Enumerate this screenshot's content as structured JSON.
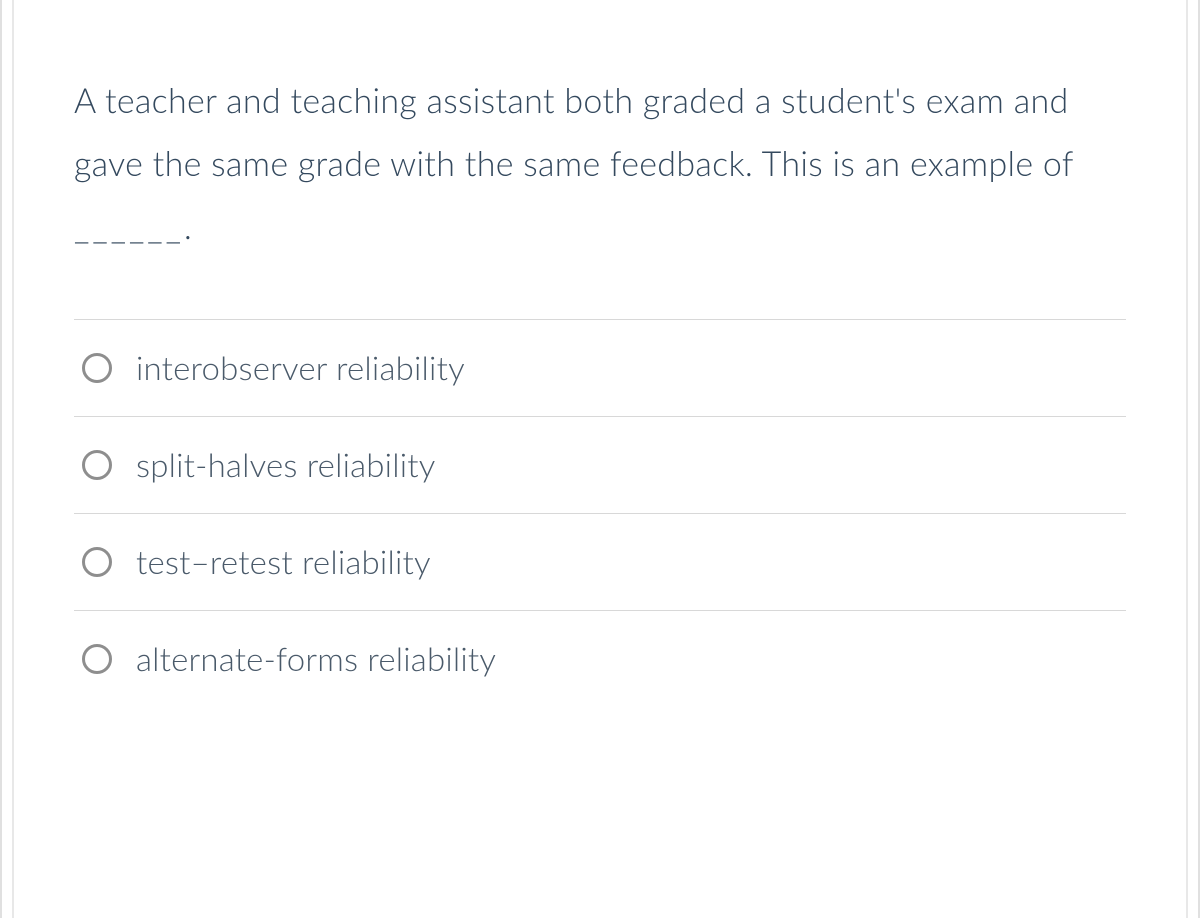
{
  "question": {
    "text_part1": "A teacher and teaching assistant both graded a student's exam and gave the same grade with the same feedback. This is an example of ",
    "blank": "______",
    "text_part2": "."
  },
  "options": [
    {
      "label": "interobserver reliability",
      "selected": false
    },
    {
      "label": "split-halves reliability",
      "selected": false
    },
    {
      "label": "test–retest reliability",
      "selected": false
    },
    {
      "label": "alternate-forms reliability",
      "selected": false
    }
  ],
  "styling": {
    "text_color": "#34495e",
    "option_text_color": "#4a5a6a",
    "radio_border_color": "#8e8e8e",
    "divider_color": "#d8d8d8",
    "outer_border_color": "#e0e0e0",
    "inner_border_color": "#e8e8e8",
    "question_fontsize": 34,
    "option_fontsize": 33,
    "font_weight": 300,
    "radio_size": 30,
    "radio_border_width": 3
  }
}
